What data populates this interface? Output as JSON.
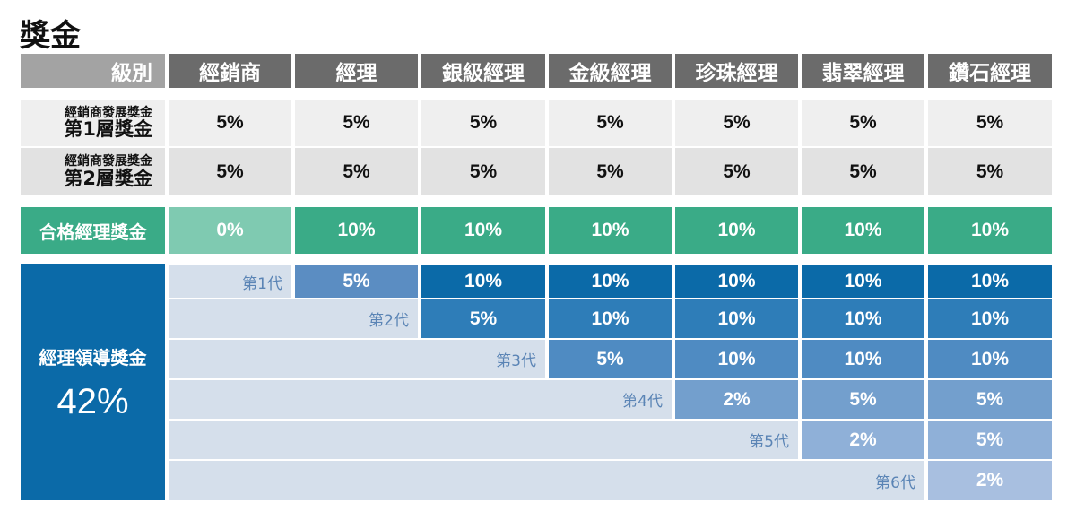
{
  "title": "獎金",
  "header": {
    "level_label": "級別",
    "columns": [
      "經銷商",
      "經理",
      "銀級經理",
      "金級經理",
      "珍珠經理",
      "翡翠經理",
      "鑽石經理"
    ]
  },
  "rows": {
    "dev1": {
      "small": "經銷商發展獎金",
      "big": "第1層獎金",
      "values": [
        "5%",
        "5%",
        "5%",
        "5%",
        "5%",
        "5%",
        "5%"
      ]
    },
    "dev2": {
      "small": "經銷商發展獎金",
      "big": "第2層獎金",
      "values": [
        "5%",
        "5%",
        "5%",
        "5%",
        "5%",
        "5%",
        "5%"
      ]
    },
    "qualified": {
      "label": "合格經理獎金",
      "values": [
        "0%",
        "10%",
        "10%",
        "10%",
        "10%",
        "10%",
        "10%"
      ]
    }
  },
  "leadership": {
    "label": "經理領導獎金",
    "total": "42%",
    "generations": [
      {
        "gen": "第1代",
        "values": [
          "5%",
          "10%",
          "10%",
          "10%",
          "10%",
          "10%"
        ]
      },
      {
        "gen": "第2代",
        "values": [
          "5%",
          "10%",
          "10%",
          "10%",
          "10%"
        ]
      },
      {
        "gen": "第3代",
        "values": [
          "5%",
          "10%",
          "10%",
          "10%"
        ]
      },
      {
        "gen": "第4代",
        "values": [
          "2%",
          "5%",
          "5%"
        ]
      },
      {
        "gen": "第5代",
        "values": [
          "2%",
          "5%"
        ]
      },
      {
        "gen": "第6代",
        "values": [
          "2%"
        ]
      }
    ]
  },
  "colors": {
    "header": "#6b6b6b",
    "green": "#3aab87",
    "green_light": "#7fcab1",
    "leader_blue": "#0b6aa8",
    "generation_bg": "#d5dfeb"
  }
}
